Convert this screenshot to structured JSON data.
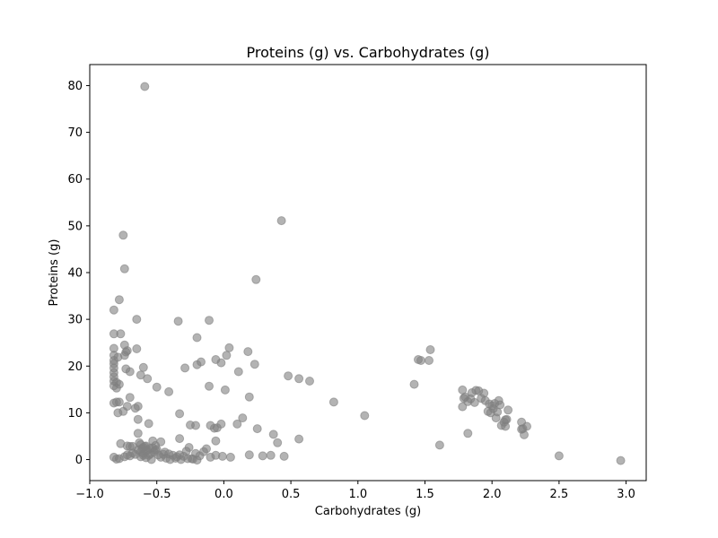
{
  "chart_data": {
    "type": "scatter",
    "title": "Proteins (g) vs. Carbohydrates (g)",
    "xlabel": "Carbohydrates (g)",
    "ylabel": "Proteins (g)",
    "xlim": [
      -1.0,
      3.15
    ],
    "ylim": [
      -4.5,
      84.5
    ],
    "xticks": [
      "−1.0",
      "−0.5",
      "0.0",
      "0.5",
      "1.0",
      "1.5",
      "2.0",
      "2.5",
      "3.0"
    ],
    "xtick_values": [
      -1.0,
      -0.5,
      0.0,
      0.5,
      1.0,
      1.5,
      2.0,
      2.5,
      3.0
    ],
    "yticks": [
      "0",
      "10",
      "20",
      "30",
      "40",
      "50",
      "60",
      "70",
      "80"
    ],
    "ytick_values": [
      0,
      10,
      20,
      30,
      40,
      50,
      60,
      70,
      80
    ],
    "grid": false,
    "marker_color": "#808080",
    "marker_opacity": 0.6,
    "points": [
      [
        -0.59,
        79.8
      ],
      [
        -0.75,
        48.0
      ],
      [
        -0.74,
        40.8
      ],
      [
        0.43,
        51.1
      ],
      [
        0.24,
        38.5
      ],
      [
        -0.78,
        34.2
      ],
      [
        -0.82,
        32.0
      ],
      [
        -0.65,
        30.0
      ],
      [
        -0.34,
        29.6
      ],
      [
        -0.11,
        29.8
      ],
      [
        -0.82,
        26.9
      ],
      [
        -0.77,
        26.9
      ],
      [
        -0.2,
        26.1
      ],
      [
        -0.82,
        23.8
      ],
      [
        -0.74,
        24.5
      ],
      [
        -0.73,
        23.0
      ],
      [
        -0.65,
        23.7
      ],
      [
        -0.72,
        23.3
      ],
      [
        -0.82,
        22.3
      ],
      [
        -0.74,
        22.3
      ],
      [
        -0.82,
        21.2
      ],
      [
        -0.79,
        21.9
      ],
      [
        0.04,
        23.9
      ],
      [
        0.18,
        23.1
      ],
      [
        -0.82,
        20.5
      ],
      [
        -0.82,
        19.6
      ],
      [
        -0.82,
        18.6
      ],
      [
        -0.73,
        19.4
      ],
      [
        -0.7,
        18.8
      ],
      [
        -0.6,
        19.7
      ],
      [
        -0.62,
        18.1
      ],
      [
        -0.57,
        17.3
      ],
      [
        -0.82,
        17.7
      ],
      [
        -0.82,
        16.8
      ],
      [
        -0.8,
        16.5
      ],
      [
        -0.78,
        16.1
      ],
      [
        -0.82,
        15.8
      ],
      [
        -0.8,
        15.3
      ],
      [
        -0.5,
        15.5
      ],
      [
        -0.29,
        19.6
      ],
      [
        -0.2,
        20.3
      ],
      [
        -0.17,
        20.9
      ],
      [
        -0.06,
        21.4
      ],
      [
        -0.02,
        20.7
      ],
      [
        0.02,
        22.3
      ],
      [
        0.23,
        20.4
      ],
      [
        0.11,
        18.8
      ],
      [
        0.48,
        17.9
      ],
      [
        0.56,
        17.3
      ],
      [
        0.64,
        16.8
      ],
      [
        -0.41,
        14.5
      ],
      [
        -0.11,
        15.7
      ],
      [
        0.01,
        14.9
      ],
      [
        -0.8,
        12.3
      ],
      [
        -0.82,
        12.1
      ],
      [
        -0.78,
        12.3
      ],
      [
        -0.7,
        13.3
      ],
      [
        -0.72,
        11.4
      ],
      [
        -0.66,
        11.0
      ],
      [
        -0.64,
        11.4
      ],
      [
        -0.79,
        10.0
      ],
      [
        -0.75,
        10.3
      ],
      [
        0.19,
        13.4
      ],
      [
        0.82,
        12.3
      ],
      [
        1.05,
        9.4
      ],
      [
        1.42,
        16.1
      ],
      [
        1.45,
        21.4
      ],
      [
        1.47,
        21.2
      ],
      [
        1.53,
        21.2
      ],
      [
        1.54,
        23.5
      ],
      [
        -0.64,
        8.6
      ],
      [
        -0.56,
        7.7
      ],
      [
        -0.33,
        9.8
      ],
      [
        -0.25,
        7.4
      ],
      [
        -0.21,
        7.3
      ],
      [
        -0.1,
        7.3
      ],
      [
        -0.07,
        6.7
      ],
      [
        -0.05,
        6.8
      ],
      [
        -0.02,
        7.6
      ],
      [
        0.1,
        7.6
      ],
      [
        0.14,
        8.9
      ],
      [
        0.25,
        6.6
      ],
      [
        0.37,
        5.4
      ],
      [
        0.56,
        4.4
      ],
      [
        0.4,
        3.6
      ],
      [
        -0.64,
        5.6
      ],
      [
        -0.33,
        4.5
      ],
      [
        -0.06,
        4.0
      ],
      [
        -0.77,
        3.4
      ],
      [
        -0.72,
        2.9
      ],
      [
        -0.7,
        2.8
      ],
      [
        -0.68,
        2.8
      ],
      [
        -0.63,
        3.6
      ],
      [
        -0.62,
        3.2
      ],
      [
        -0.6,
        2.6
      ],
      [
        -0.58,
        2.9
      ],
      [
        -0.55,
        2.4
      ],
      [
        -0.53,
        4.0
      ],
      [
        -0.51,
        3.0
      ],
      [
        -0.47,
        3.8
      ],
      [
        -0.44,
        1.6
      ],
      [
        -0.41,
        1.2
      ],
      [
        -0.38,
        0.9
      ],
      [
        -0.35,
        0.6
      ],
      [
        -0.33,
        1.0
      ],
      [
        -0.3,
        0.7
      ],
      [
        -0.28,
        1.8
      ],
      [
        -0.26,
        2.6
      ],
      [
        -0.24,
        0.2
      ],
      [
        -0.21,
        1.3
      ],
      [
        -0.18,
        0.8
      ],
      [
        -0.15,
        1.7
      ],
      [
        -0.13,
        2.3
      ],
      [
        -0.1,
        0.5
      ],
      [
        -0.06,
        0.9
      ],
      [
        -0.01,
        0.7
      ],
      [
        0.05,
        0.5
      ],
      [
        0.19,
        1.0
      ],
      [
        0.29,
        0.8
      ],
      [
        0.35,
        0.9
      ],
      [
        0.45,
        0.7
      ],
      [
        -0.82,
        0.5
      ],
      [
        -0.8,
        0.1
      ],
      [
        -0.78,
        0.2
      ],
      [
        -0.74,
        0.6
      ],
      [
        -0.72,
        1.0
      ],
      [
        -0.7,
        0.8
      ],
      [
        -0.68,
        1.4
      ],
      [
        -0.66,
        1.1
      ],
      [
        -0.64,
        2.1
      ],
      [
        -0.62,
        1.7
      ],
      [
        -0.6,
        1.3
      ],
      [
        -0.58,
        1.9
      ],
      [
        -0.56,
        0.9
      ],
      [
        -0.55,
        1.2
      ],
      [
        -0.54,
        0.0
      ],
      [
        -0.52,
        1.6
      ],
      [
        -0.5,
        2.2
      ],
      [
        -0.49,
        1.0
      ],
      [
        -0.47,
        0.5
      ],
      [
        -0.45,
        1.1
      ],
      [
        -0.43,
        0.3
      ],
      [
        -0.4,
        0.0
      ],
      [
        -0.36,
        0.3
      ],
      [
        -0.32,
        0.0
      ],
      [
        -0.27,
        0.2
      ],
      [
        -0.23,
        0.1
      ],
      [
        -0.2,
        -0.1
      ],
      [
        -0.61,
        2.4
      ],
      [
        -0.59,
        2.8
      ],
      [
        -0.57,
        2.0
      ],
      [
        -0.53,
        2.5
      ],
      [
        -0.51,
        2.0
      ],
      [
        -0.62,
        0.6
      ],
      [
        -0.6,
        0.9
      ],
      [
        -0.58,
        0.4
      ],
      [
        1.78,
        14.9
      ],
      [
        1.8,
        13.4
      ],
      [
        1.79,
        13.1
      ],
      [
        1.82,
        12.4
      ],
      [
        1.78,
        11.3
      ],
      [
        1.84,
        13.0
      ],
      [
        1.85,
        14.3
      ],
      [
        1.88,
        14.8
      ],
      [
        1.9,
        14.7
      ],
      [
        1.92,
        13.1
      ],
      [
        1.94,
        14.2
      ],
      [
        1.95,
        12.6
      ],
      [
        1.97,
        10.3
      ],
      [
        1.99,
        10.0
      ],
      [
        2.0,
        11.5
      ],
      [
        2.02,
        12.0
      ],
      [
        2.01,
        10.9
      ],
      [
        2.03,
        8.9
      ],
      [
        2.05,
        12.6
      ],
      [
        2.06,
        11.7
      ],
      [
        2.07,
        7.3
      ],
      [
        2.09,
        8.0
      ],
      [
        2.1,
        7.1
      ],
      [
        2.11,
        8.6
      ],
      [
        2.12,
        10.6
      ],
      [
        2.1,
        8.5
      ],
      [
        2.22,
        8.0
      ],
      [
        2.23,
        6.6
      ],
      [
        2.24,
        5.3
      ],
      [
        2.26,
        7.1
      ],
      [
        2.22,
        6.5
      ],
      [
        1.82,
        5.6
      ],
      [
        1.61,
        3.1
      ],
      [
        2.5,
        0.8
      ],
      [
        2.96,
        -0.2
      ],
      [
        1.87,
        12.2
      ],
      [
        1.98,
        11.9
      ],
      [
        2.04,
        10.2
      ]
    ]
  }
}
